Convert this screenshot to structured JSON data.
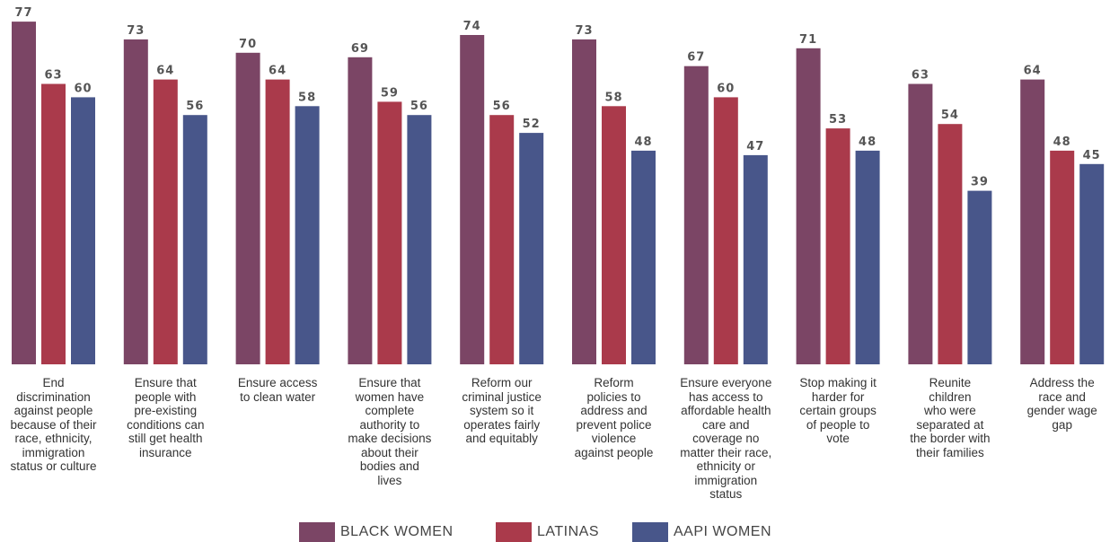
{
  "chart_data": {
    "type": "bar",
    "categories": [
      "End discrimination against people because of their race, ethnicity, immigration status or culture",
      "Ensure that people with pre-existing conditions can still get health insurance",
      "Ensure access to clean water",
      "Ensure that women have complete authority to make decisions about their bodies and lives",
      "Reform our criminal justice system so it operates fairly and equitably",
      "Reform policies to address and prevent police violence against people",
      "Ensure everyone has access to affordable health care and coverage no matter their race, ethnicity or immigration status",
      "Stop making it harder for certain groups of people to vote",
      "Reunite children who were separated at the border with their families",
      "Address the race and gender wage gap"
    ],
    "category_lines": [
      [
        "End",
        "discrimination",
        "against people",
        "because of their",
        "race, ethnicity,",
        "immigration",
        "status or culture"
      ],
      [
        "Ensure that",
        "people with",
        "pre-existing",
        "conditions can",
        "still get health",
        "insurance"
      ],
      [
        "Ensure access",
        "to clean water"
      ],
      [
        "Ensure that",
        "women have",
        "complete",
        "authority to",
        "make decisions",
        "about their",
        "bodies and",
        "lives"
      ],
      [
        "Reform our",
        "criminal justice",
        "system so it",
        "operates fairly",
        "and equitably"
      ],
      [
        "Reform",
        "policies to",
        "address and",
        "prevent police",
        "violence",
        "against people"
      ],
      [
        "Ensure everyone",
        "has access to",
        "affordable health",
        "care and",
        "coverage no",
        "matter their race,",
        "ethnicity or",
        "immigration",
        "status"
      ],
      [
        "Stop making it",
        "harder for",
        "certain groups",
        "of people to",
        "vote"
      ],
      [
        "Reunite",
        "children",
        "who were",
        "separated at",
        "the border with",
        "their families"
      ],
      [
        "Address the",
        "race and",
        "gender wage",
        "gap"
      ]
    ],
    "series": [
      {
        "name": "BLACK WOMEN",
        "color": "#7b4565",
        "values": [
          77,
          73,
          70,
          69,
          74,
          73,
          67,
          71,
          63,
          64
        ]
      },
      {
        "name": "LATINAS",
        "color": "#aa3a4b",
        "values": [
          63,
          64,
          64,
          59,
          56,
          58,
          60,
          53,
          54,
          48
        ]
      },
      {
        "name": "AAPI WOMEN",
        "color": "#48568a",
        "values": [
          60,
          56,
          58,
          56,
          52,
          48,
          47,
          48,
          39,
          45
        ]
      }
    ],
    "ylim": [
      0,
      80
    ],
    "grid": false,
    "legend_position": "bottom-center",
    "data_labels": true
  }
}
